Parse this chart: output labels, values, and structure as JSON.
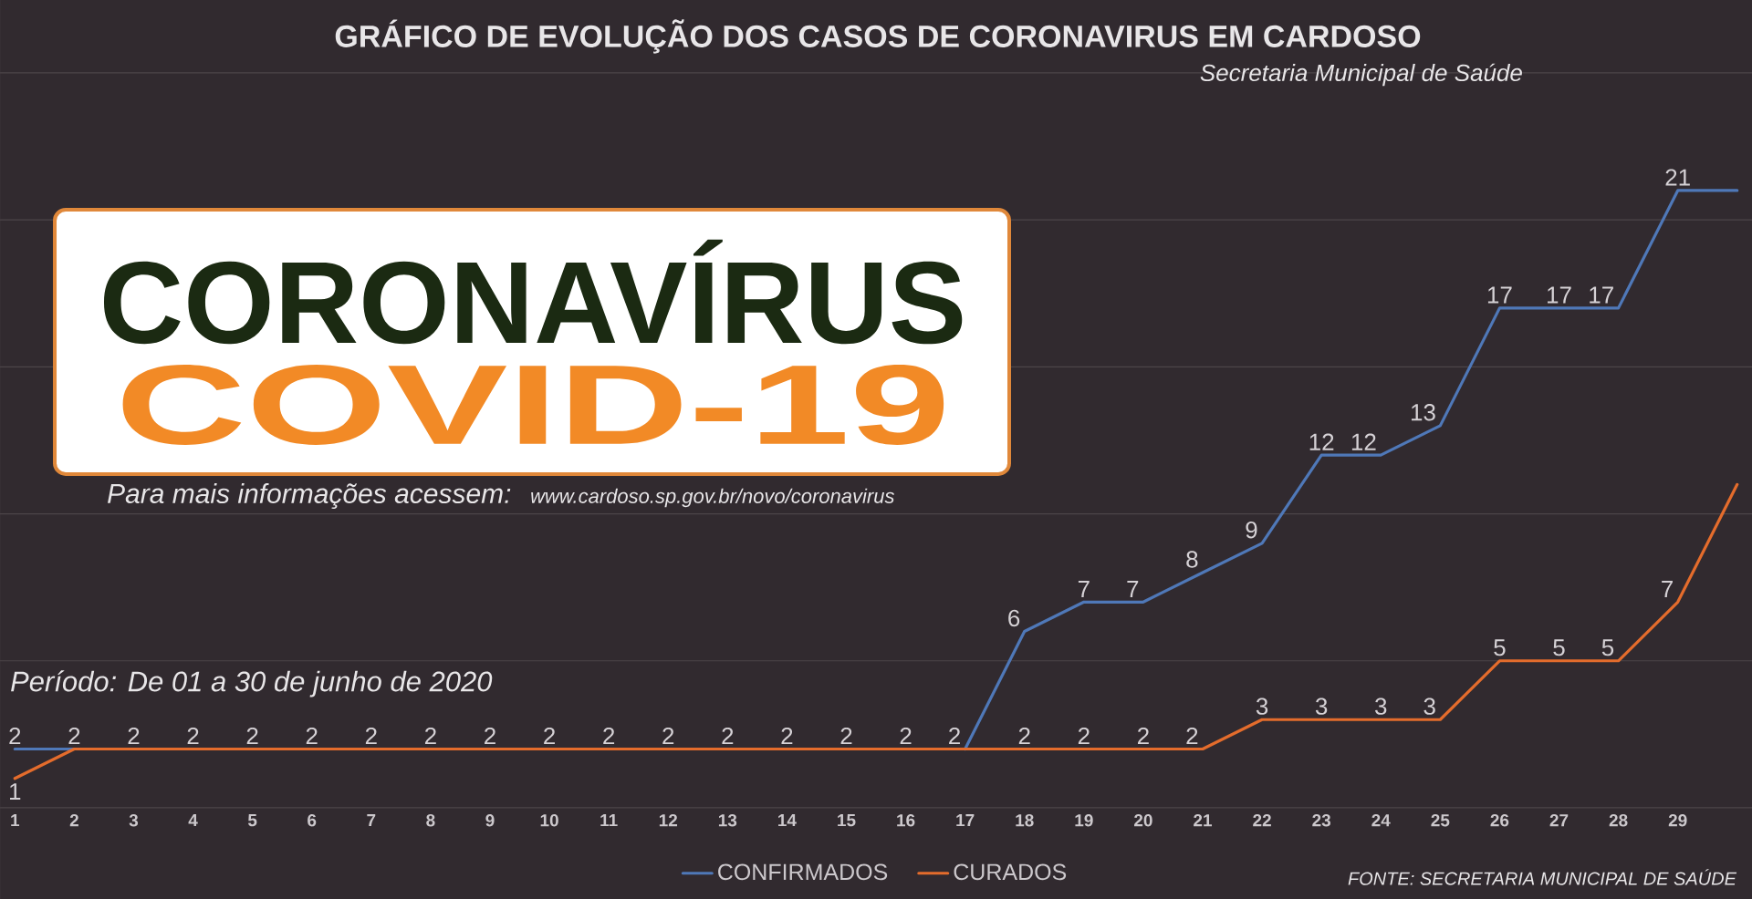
{
  "chart_data": {
    "type": "line",
    "title": "GRÁFICO DE EVOLUÇÃO DOS CASOS DE CORONAVIRUS EM CARDOSO",
    "subtitle": "Secretaria Municipal de Saúde",
    "annotations": [
      "CORONAVÍRUS",
      "COVID-19",
      "Para mais informações acessem:",
      "www.cardoso.sp.gov.br/novo/coronavirus",
      "Período: De 01 a 30 de junho de 2020",
      "FONTE: SECRETARIA MUNICIPAL DE SAÚDE"
    ],
    "categories": [
      "1",
      "2",
      "3",
      "4",
      "5",
      "6",
      "7",
      "8",
      "9",
      "10",
      "11",
      "12",
      "13",
      "14",
      "15",
      "16",
      "17",
      "18",
      "19",
      "20",
      "21",
      "22",
      "23",
      "24",
      "25",
      "26",
      "27",
      "28",
      "29",
      null
    ],
    "series": [
      {
        "name": "CONFIRMADOS",
        "color": "#4f78b8",
        "values": [
          2,
          2,
          null,
          null,
          null,
          null,
          null,
          null,
          null,
          null,
          null,
          null,
          null,
          null,
          null,
          null,
          2,
          6,
          7,
          7,
          8,
          9,
          12,
          12,
          13,
          17,
          17,
          17,
          21,
          21
        ],
        "value_labels": [
          "2",
          null,
          null,
          null,
          null,
          null,
          null,
          null,
          null,
          null,
          null,
          null,
          null,
          null,
          null,
          null,
          null,
          "6",
          "7",
          "7",
          "8",
          "9",
          "12",
          "12",
          "13",
          "17",
          "17",
          "17",
          "21",
          null
        ]
      },
      {
        "name": "CURADOS",
        "color": "#e46c2c",
        "values": [
          1,
          2,
          2,
          2,
          2,
          2,
          2,
          2,
          2,
          2,
          2,
          2,
          2,
          2,
          2,
          2,
          2,
          2,
          2,
          2,
          2,
          3,
          3,
          3,
          3,
          5,
          5,
          5,
          7,
          11
        ],
        "value_labels": [
          "1",
          "2",
          "2",
          "2",
          "2",
          "2",
          "2",
          "2",
          "2",
          "2",
          "2",
          "2",
          "2",
          "2",
          "2",
          "2",
          "2",
          "2",
          "2",
          "2",
          "2",
          "3",
          "3",
          "3",
          "3",
          "5",
          "5",
          "5",
          "7",
          null
        ]
      }
    ],
    "ylim": [
      0,
      25
    ],
    "yticks": [
      {
        "value": 0,
        "label": null
      },
      {
        "value": 5,
        "label": null
      },
      {
        "value": 10,
        "label": null
      },
      {
        "value": 15,
        "label": null
      },
      {
        "value": 20,
        "label": null
      },
      {
        "value": 25,
        "label": null
      }
    ],
    "grid": "y",
    "tick_labels": "x",
    "legend": "bottom",
    "marker": "none"
  }
}
